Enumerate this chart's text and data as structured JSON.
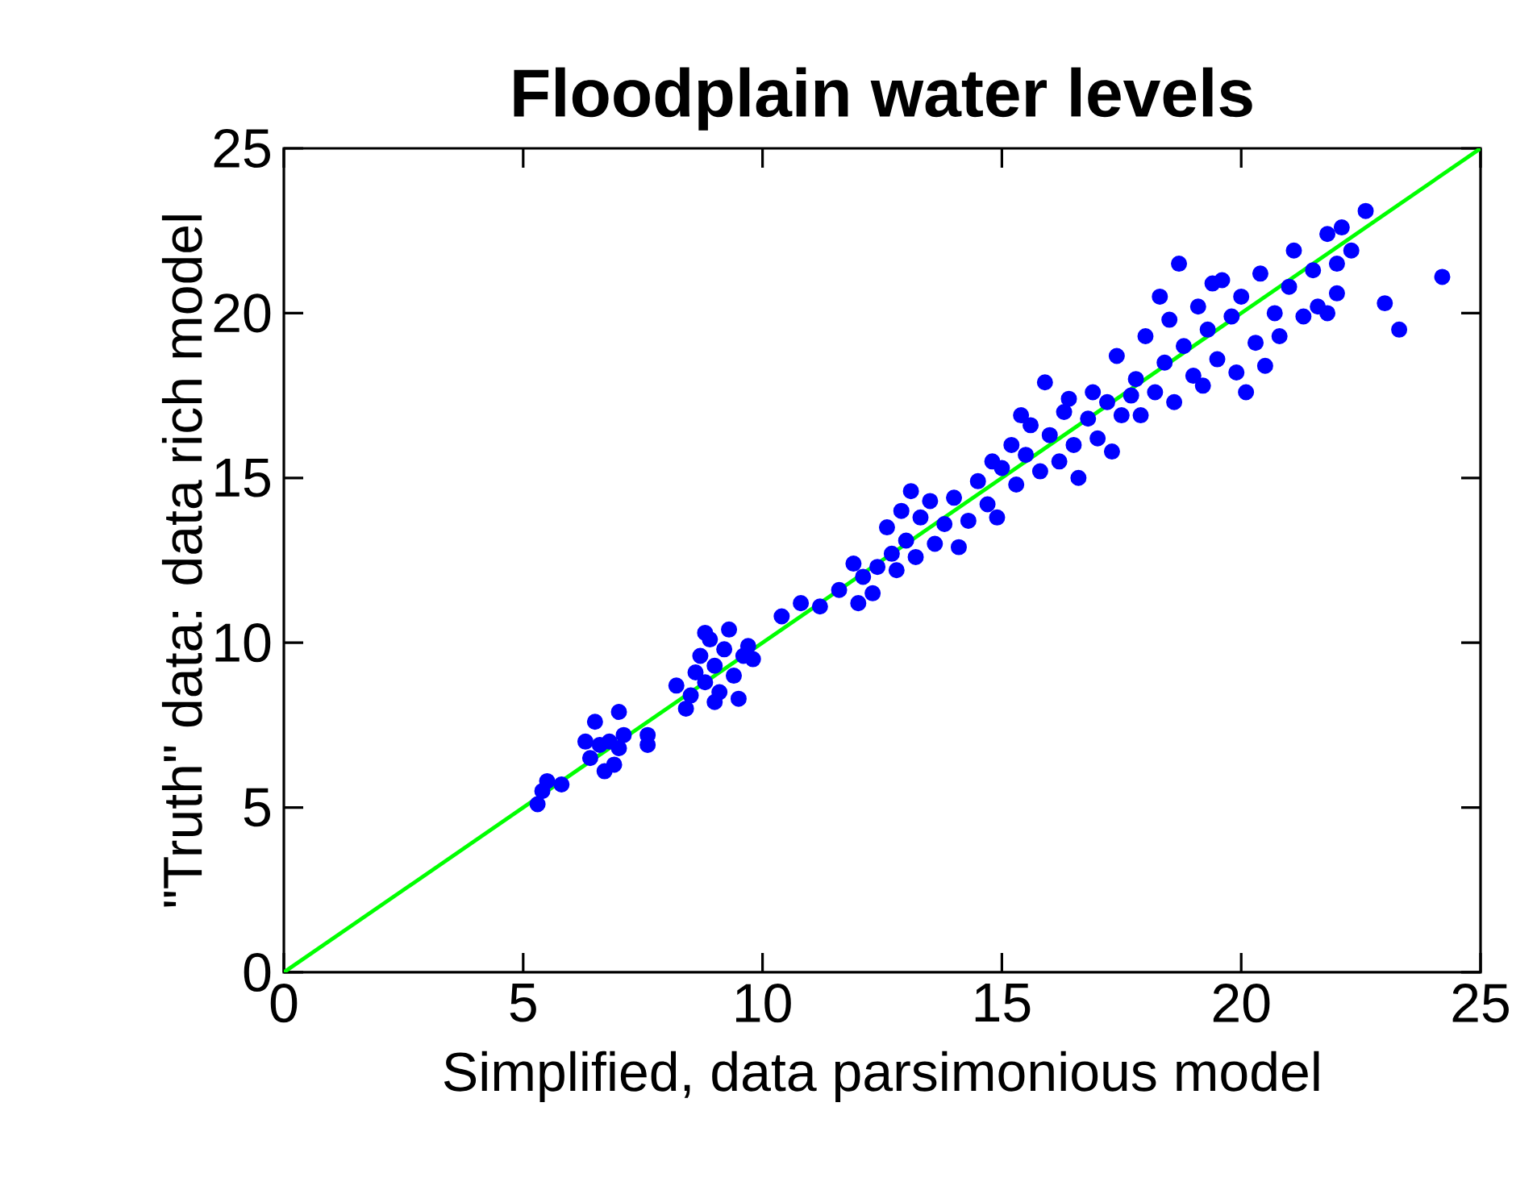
{
  "chart_data": {
    "type": "scatter",
    "title": "Floodplain water levels",
    "xlabel": "Simplified, data parsimonious model",
    "ylabel": "\"Truth\" data: data rich model",
    "xlim": [
      0,
      25
    ],
    "ylim": [
      0,
      25
    ],
    "xticks": [
      0,
      5,
      10,
      15,
      20,
      25
    ],
    "yticks": [
      0,
      5,
      10,
      15,
      20,
      25
    ],
    "grid": false,
    "legend": false,
    "series": [
      {
        "marker": "circle",
        "color": "#0000ff",
        "x": [
          5.3,
          5.4,
          5.5,
          5.8,
          6.4,
          6.5,
          6.6,
          6.8,
          6.9,
          7.0,
          7.1,
          6.7,
          7.0,
          7.6,
          7.6,
          6.3,
          8.5,
          8.6,
          8.7,
          8.8,
          8.9,
          9.0,
          9.1,
          9.2,
          9.3,
          9.4,
          9.5,
          9.6,
          9.7,
          8.4,
          9.0,
          9.8,
          8.2,
          8.8,
          10.4,
          10.8,
          11.2,
          11.6,
          11.9,
          12.1,
          12.0,
          12.3,
          12.4,
          12.6,
          12.7,
          12.9,
          13.0,
          13.2,
          13.3,
          13.5,
          13.6,
          13.8,
          14.0,
          14.1,
          14.3,
          14.5,
          14.7,
          14.8,
          14.9,
          13.1,
          12.8,
          15.0,
          15.2,
          15.3,
          15.5,
          15.6,
          15.8,
          15.9,
          16.0,
          16.2,
          16.3,
          16.5,
          16.6,
          16.8,
          16.9,
          17.0,
          17.2,
          17.3,
          17.4,
          17.5,
          16.4,
          15.4,
          17.7,
          17.8,
          17.9,
          18.0,
          18.2,
          18.3,
          18.4,
          18.6,
          18.7,
          18.8,
          19.0,
          19.1,
          19.2,
          19.3,
          19.5,
          19.6,
          19.8,
          19.9,
          20.0,
          20.1,
          20.3,
          20.4,
          20.5,
          20.7,
          20.8,
          21.0,
          21.1,
          21.3,
          21.5,
          21.6,
          21.8,
          22.0,
          22.1,
          22.3,
          22.0,
          22.6,
          23.0,
          23.3,
          24.2,
          21.8,
          19.4,
          18.5
        ],
        "values": [
          5.1,
          5.5,
          5.8,
          5.7,
          6.5,
          7.6,
          6.9,
          7.0,
          6.3,
          6.8,
          7.2,
          6.1,
          7.9,
          6.9,
          7.2,
          7.0,
          8.4,
          9.1,
          9.6,
          8.8,
          10.1,
          9.3,
          8.5,
          9.8,
          10.4,
          9.0,
          8.3,
          9.6,
          9.9,
          8.0,
          8.2,
          9.5,
          8.7,
          10.3,
          10.8,
          11.2,
          11.1,
          11.6,
          12.4,
          12.0,
          11.2,
          11.5,
          12.3,
          13.5,
          12.7,
          14.0,
          13.1,
          12.6,
          13.8,
          14.3,
          13.0,
          13.6,
          14.4,
          12.9,
          13.7,
          14.9,
          14.2,
          15.5,
          13.8,
          14.6,
          12.2,
          15.3,
          16.0,
          14.8,
          15.7,
          16.6,
          15.2,
          17.9,
          16.3,
          15.5,
          17.0,
          16.0,
          15.0,
          16.8,
          17.6,
          16.2,
          17.3,
          15.8,
          18.7,
          16.9,
          17.4,
          16.9,
          17.5,
          18.0,
          16.9,
          19.3,
          17.6,
          20.5,
          18.5,
          17.3,
          21.5,
          19.0,
          18.1,
          20.2,
          17.8,
          19.5,
          18.6,
          21.0,
          19.9,
          18.2,
          20.5,
          17.6,
          19.1,
          21.2,
          18.4,
          20.0,
          19.3,
          20.8,
          21.9,
          19.9,
          21.3,
          20.2,
          20.0,
          21.5,
          22.6,
          21.9,
          20.6,
          23.1,
          20.3,
          19.5,
          21.1,
          22.4,
          20.9,
          19.8
        ]
      },
      {
        "type": "line",
        "marker": "none",
        "color": "#00ff00",
        "x": [
          0,
          25
        ],
        "values": [
          0,
          25
        ]
      }
    ]
  }
}
